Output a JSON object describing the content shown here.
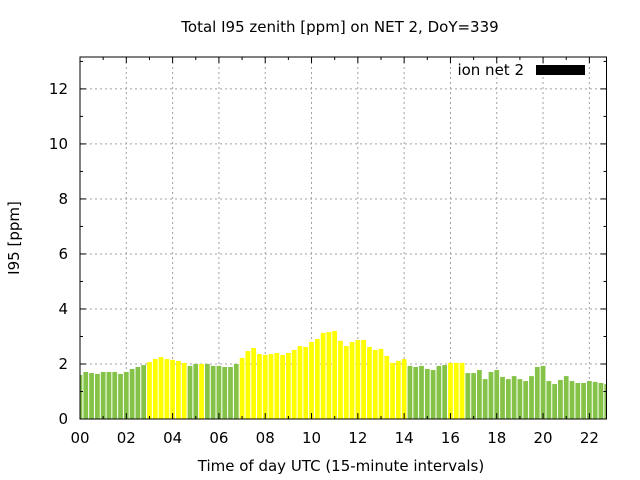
{
  "chart_data": {
    "type": "bar",
    "title": "Total I95 zenith [ppm] on NET 2, DoY=339",
    "xlabel": "Time of day UTC (15-minute intervals)",
    "ylabel": "I95 [ppm]",
    "xlim": [
      0,
      22.74
    ],
    "ylim": [
      0,
      13.16
    ],
    "grid": true,
    "legend": {
      "label": "ion net 2",
      "position": "top-right",
      "swatch_color": "#000000"
    },
    "x_ticks": [
      {
        "value": 0,
        "label": "00"
      },
      {
        "value": 2,
        "label": "02"
      },
      {
        "value": 4,
        "label": "04"
      },
      {
        "value": 6,
        "label": "06"
      },
      {
        "value": 8,
        "label": "08"
      },
      {
        "value": 10,
        "label": "10"
      },
      {
        "value": 12,
        "label": "12"
      },
      {
        "value": 14,
        "label": "14"
      },
      {
        "value": 16,
        "label": "16"
      },
      {
        "value": 18,
        "label": "18"
      },
      {
        "value": 20,
        "label": "20"
      },
      {
        "value": 22,
        "label": "22"
      }
    ],
    "y_ticks": [
      {
        "value": 0,
        "label": "0"
      },
      {
        "value": 2,
        "label": "2"
      },
      {
        "value": 4,
        "label": "4"
      },
      {
        "value": 6,
        "label": "6"
      },
      {
        "value": 8,
        "label": "8"
      },
      {
        "value": 10,
        "label": "10"
      },
      {
        "value": 12,
        "label": "12"
      }
    ],
    "interval_hours": 0.25,
    "colors": {
      "normal": "#84c347",
      "elevated": "#ffff00"
    },
    "series": [
      {
        "name": "ion net 2",
        "values": [
          1.6,
          1.71,
          1.67,
          1.64,
          1.71,
          1.71,
          1.71,
          1.64,
          1.71,
          1.82,
          1.89,
          1.96,
          2.07,
          2.18,
          2.25,
          2.18,
          2.15,
          2.11,
          2.04,
          1.93,
          2.0,
          2.0,
          2.0,
          1.93,
          1.93,
          1.89,
          1.89,
          2.0,
          2.22,
          2.47,
          2.58,
          2.36,
          2.33,
          2.36,
          2.4,
          2.33,
          2.4,
          2.51,
          2.65,
          2.62,
          2.8,
          2.91,
          3.13,
          3.16,
          3.2,
          2.84,
          2.65,
          2.8,
          2.87,
          2.87,
          2.62,
          2.51,
          2.55,
          2.29,
          2.04,
          2.11,
          2.18,
          1.93,
          1.89,
          1.93,
          1.82,
          1.78,
          1.93,
          1.96,
          2.04,
          2.04,
          2.04,
          1.67,
          1.67,
          1.78,
          1.45,
          1.71,
          1.78,
          1.53,
          1.45,
          1.56,
          1.45,
          1.38,
          1.56,
          1.89,
          1.93,
          1.38,
          1.27,
          1.42,
          1.56,
          1.38,
          1.31,
          1.31,
          1.38,
          1.35,
          1.31,
          1.27
        ],
        "level": [
          "normal",
          "normal",
          "normal",
          "normal",
          "normal",
          "normal",
          "normal",
          "normal",
          "normal",
          "normal",
          "normal",
          "normal",
          "elevated",
          "elevated",
          "elevated",
          "elevated",
          "elevated",
          "elevated",
          "elevated",
          "normal",
          "normal",
          "elevated",
          "normal",
          "normal",
          "normal",
          "normal",
          "normal",
          "normal",
          "elevated",
          "elevated",
          "elevated",
          "elevated",
          "elevated",
          "elevated",
          "elevated",
          "elevated",
          "elevated",
          "elevated",
          "elevated",
          "elevated",
          "elevated",
          "elevated",
          "elevated",
          "elevated",
          "elevated",
          "elevated",
          "elevated",
          "elevated",
          "elevated",
          "elevated",
          "elevated",
          "elevated",
          "elevated",
          "elevated",
          "elevated",
          "elevated",
          "elevated",
          "normal",
          "normal",
          "normal",
          "normal",
          "normal",
          "normal",
          "normal",
          "elevated",
          "elevated",
          "elevated",
          "normal",
          "normal",
          "normal",
          "normal",
          "normal",
          "normal",
          "normal",
          "normal",
          "normal",
          "normal",
          "normal",
          "normal",
          "normal",
          "normal",
          "normal",
          "normal",
          "normal",
          "normal",
          "normal",
          "normal",
          "normal",
          "normal",
          "normal",
          "normal",
          "normal"
        ]
      }
    ]
  }
}
